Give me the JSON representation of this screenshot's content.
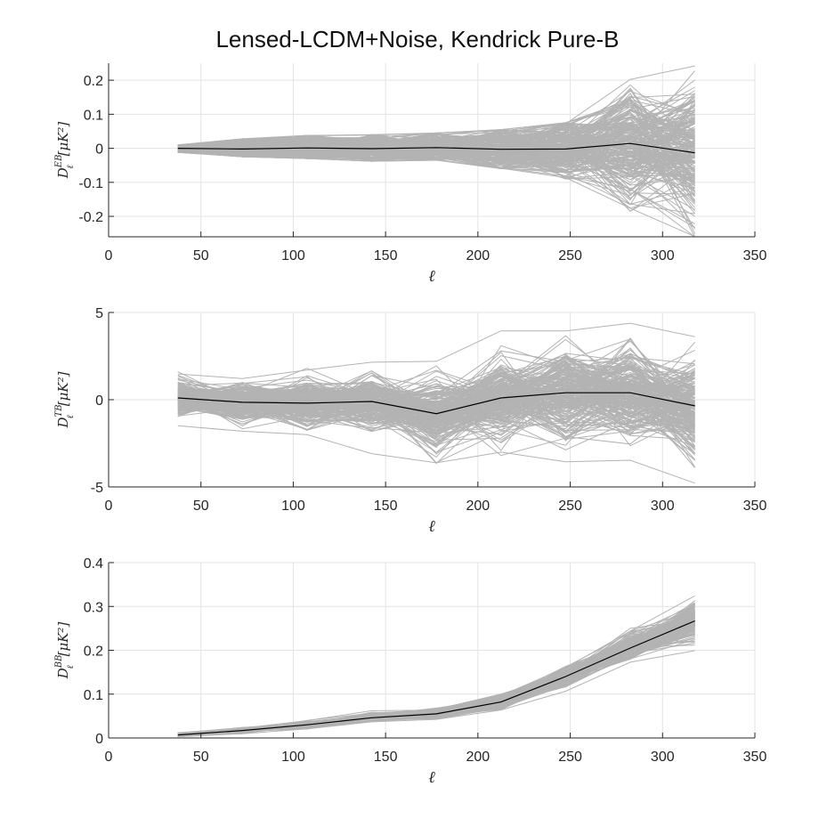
{
  "chart_data": [
    {
      "type": "line",
      "panel": "EB",
      "title": "Lensed-LCDM+Noise, Kendrick Pure-B",
      "xlabel": "ℓ",
      "ylabel": {
        "base": "D",
        "sub": "ℓ",
        "sup": "EB",
        "unit": "[μK²]"
      },
      "xlim": [
        0,
        350
      ],
      "ylim": [
        -0.26,
        0.25
      ],
      "xticks": [
        0,
        50,
        100,
        150,
        200,
        250,
        300,
        350
      ],
      "xtick_labels": [
        "0",
        "50",
        "100",
        "150",
        "200",
        "250",
        "300",
        "350"
      ],
      "yticks": [
        -0.2,
        -0.1,
        0,
        0.1,
        0.2
      ],
      "ytick_labels": [
        "-0.2",
        "-0.1",
        "0",
        "0.1",
        "0.2"
      ],
      "grid": true,
      "x": [
        37.5,
        72.5,
        107.5,
        142.5,
        177.5,
        212.5,
        247.5,
        282.5,
        317.5
      ],
      "series": [
        {
          "role": "mean",
          "color": "#000000",
          "values": [
            0.0,
            -0.002,
            0.001,
            -0.001,
            0.002,
            -0.003,
            -0.002,
            0.014,
            -0.013
          ]
        },
        {
          "role": "simulations",
          "color": "#b3b3b3",
          "mean": [
            0.0,
            -0.002,
            0.001,
            -0.001,
            0.002,
            -0.003,
            -0.002,
            0.014,
            -0.013
          ],
          "spread": [
            0.012,
            0.018,
            0.022,
            0.025,
            0.028,
            0.038,
            0.052,
            0.09,
            0.1
          ],
          "upper_envelope": [
            0.01,
            0.028,
            0.038,
            0.04,
            0.045,
            0.055,
            0.075,
            0.21,
            0.25
          ],
          "lower_envelope": [
            -0.012,
            -0.025,
            -0.03,
            -0.038,
            -0.035,
            -0.06,
            -0.09,
            -0.185,
            -0.26
          ]
        }
      ]
    },
    {
      "type": "line",
      "panel": "TB",
      "title": "",
      "xlabel": "ℓ",
      "ylabel": {
        "base": "D",
        "sub": "ℓ",
        "sup": "TB",
        "unit": "[μK²]"
      },
      "xlim": [
        0,
        350
      ],
      "ylim": [
        -5,
        5
      ],
      "xticks": [
        0,
        50,
        100,
        150,
        200,
        250,
        300,
        350
      ],
      "xtick_labels": [
        "0",
        "50",
        "100",
        "150",
        "200",
        "250",
        "300",
        "350"
      ],
      "yticks": [
        -5,
        0,
        5
      ],
      "ytick_labels": [
        "-5",
        "0",
        "5"
      ],
      "grid": true,
      "x": [
        37.5,
        72.5,
        107.5,
        142.5,
        177.5,
        212.5,
        247.5,
        282.5,
        317.5
      ],
      "series": [
        {
          "role": "mean",
          "color": "#000000",
          "values": [
            0.1,
            -0.15,
            -0.2,
            -0.1,
            -0.8,
            0.1,
            0.4,
            0.4,
            -0.35
          ]
        },
        {
          "role": "simulations",
          "color": "#b3b3b3",
          "mean": [
            0.1,
            -0.15,
            -0.2,
            -0.1,
            -0.8,
            0.1,
            0.4,
            0.4,
            -0.35
          ],
          "spread": [
            0.55,
            0.6,
            0.7,
            0.8,
            1.0,
            1.1,
            1.3,
            1.3,
            1.4
          ],
          "upper_envelope": [
            1.6,
            1.3,
            1.8,
            2.2,
            2.3,
            4.2,
            4.0,
            4.4,
            3.8
          ],
          "lower_envelope": [
            -1.5,
            -1.9,
            -2.1,
            -3.3,
            -3.9,
            -3.2,
            -3.7,
            -3.5,
            -5.0
          ]
        }
      ]
    },
    {
      "type": "line",
      "panel": "BB",
      "title": "",
      "xlabel": "ℓ",
      "ylabel": {
        "base": "D",
        "sub": "ℓ",
        "sup": "BB",
        "unit": "[μK²]"
      },
      "xlim": [
        0,
        350
      ],
      "ylim": [
        0,
        0.4
      ],
      "xticks": [
        0,
        50,
        100,
        150,
        200,
        250,
        300,
        350
      ],
      "xtick_labels": [
        "0",
        "50",
        "100",
        "150",
        "200",
        "250",
        "300",
        "350"
      ],
      "yticks": [
        0,
        0.1,
        0.2,
        0.3,
        0.4
      ],
      "ytick_labels": [
        "0",
        "0.1",
        "0.2",
        "0.3",
        "0.4"
      ],
      "grid": true,
      "x": [
        37.5,
        72.5,
        107.5,
        142.5,
        177.5,
        212.5,
        247.5,
        282.5,
        317.5
      ],
      "series": [
        {
          "role": "mean",
          "color": "#000000",
          "values": [
            0.007,
            0.017,
            0.03,
            0.046,
            0.055,
            0.082,
            0.14,
            0.205,
            0.267
          ]
        },
        {
          "role": "simulations",
          "color": "#b3b3b3",
          "mean": [
            0.007,
            0.017,
            0.03,
            0.046,
            0.055,
            0.082,
            0.14,
            0.205,
            0.267
          ],
          "spread": [
            0.002,
            0.003,
            0.004,
            0.005,
            0.006,
            0.008,
            0.012,
            0.016,
            0.02
          ],
          "upper_envelope": [
            0.012,
            0.024,
            0.04,
            0.063,
            0.068,
            0.1,
            0.165,
            0.25,
            0.335
          ],
          "lower_envelope": [
            0.003,
            0.01,
            0.021,
            0.037,
            0.043,
            0.065,
            0.11,
            0.18,
            0.2
          ]
        }
      ]
    }
  ]
}
